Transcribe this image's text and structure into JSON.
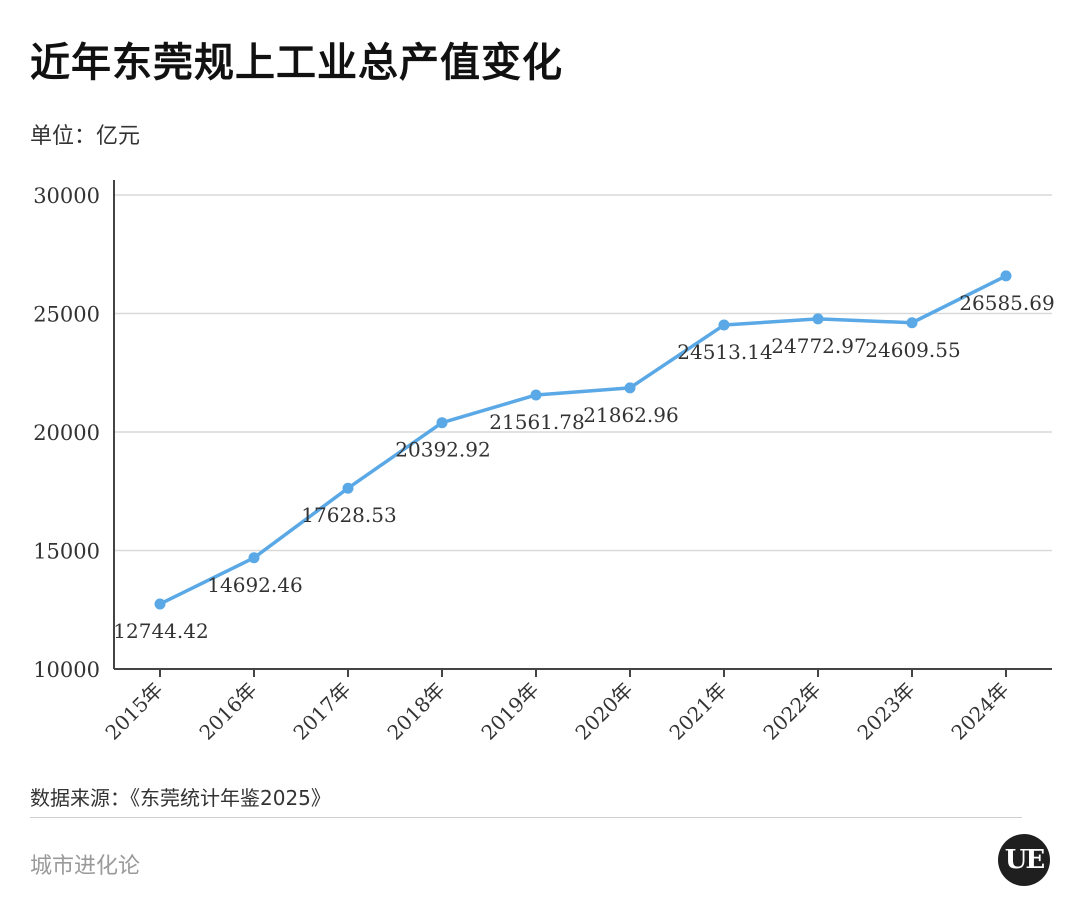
{
  "title": "近年东莞规上工业总产值变化",
  "unit_label": "单位：亿元",
  "source": "数据来源：《东莞统计年鉴2025》",
  "brand": "城市进化论",
  "logo_text": "UE",
  "colors": {
    "line": "#5aa9e6",
    "grid": "#d9d9d9",
    "axis": "#444444",
    "label": "#333333"
  },
  "chart_data": {
    "type": "line",
    "categories": [
      "2015年",
      "2016年",
      "2017年",
      "2018年",
      "2019年",
      "2020年",
      "2021年",
      "2022年",
      "2023年",
      "2024年"
    ],
    "values": [
      12744.42,
      14692.46,
      17628.53,
      20392.92,
      21561.78,
      21862.96,
      24513.14,
      24772.97,
      24609.55,
      26585.69
    ],
    "value_labels": [
      "12744.42",
      "14692.46",
      "17628.53",
      "20392.92",
      "21561.78",
      "21862.96",
      "24513.14",
      "24772.97",
      "24609.55",
      "26585.69"
    ],
    "y_ticks": [
      10000,
      15000,
      20000,
      25000,
      30000
    ],
    "ylim": [
      10000,
      30000
    ],
    "grid": true,
    "legend": "none"
  }
}
